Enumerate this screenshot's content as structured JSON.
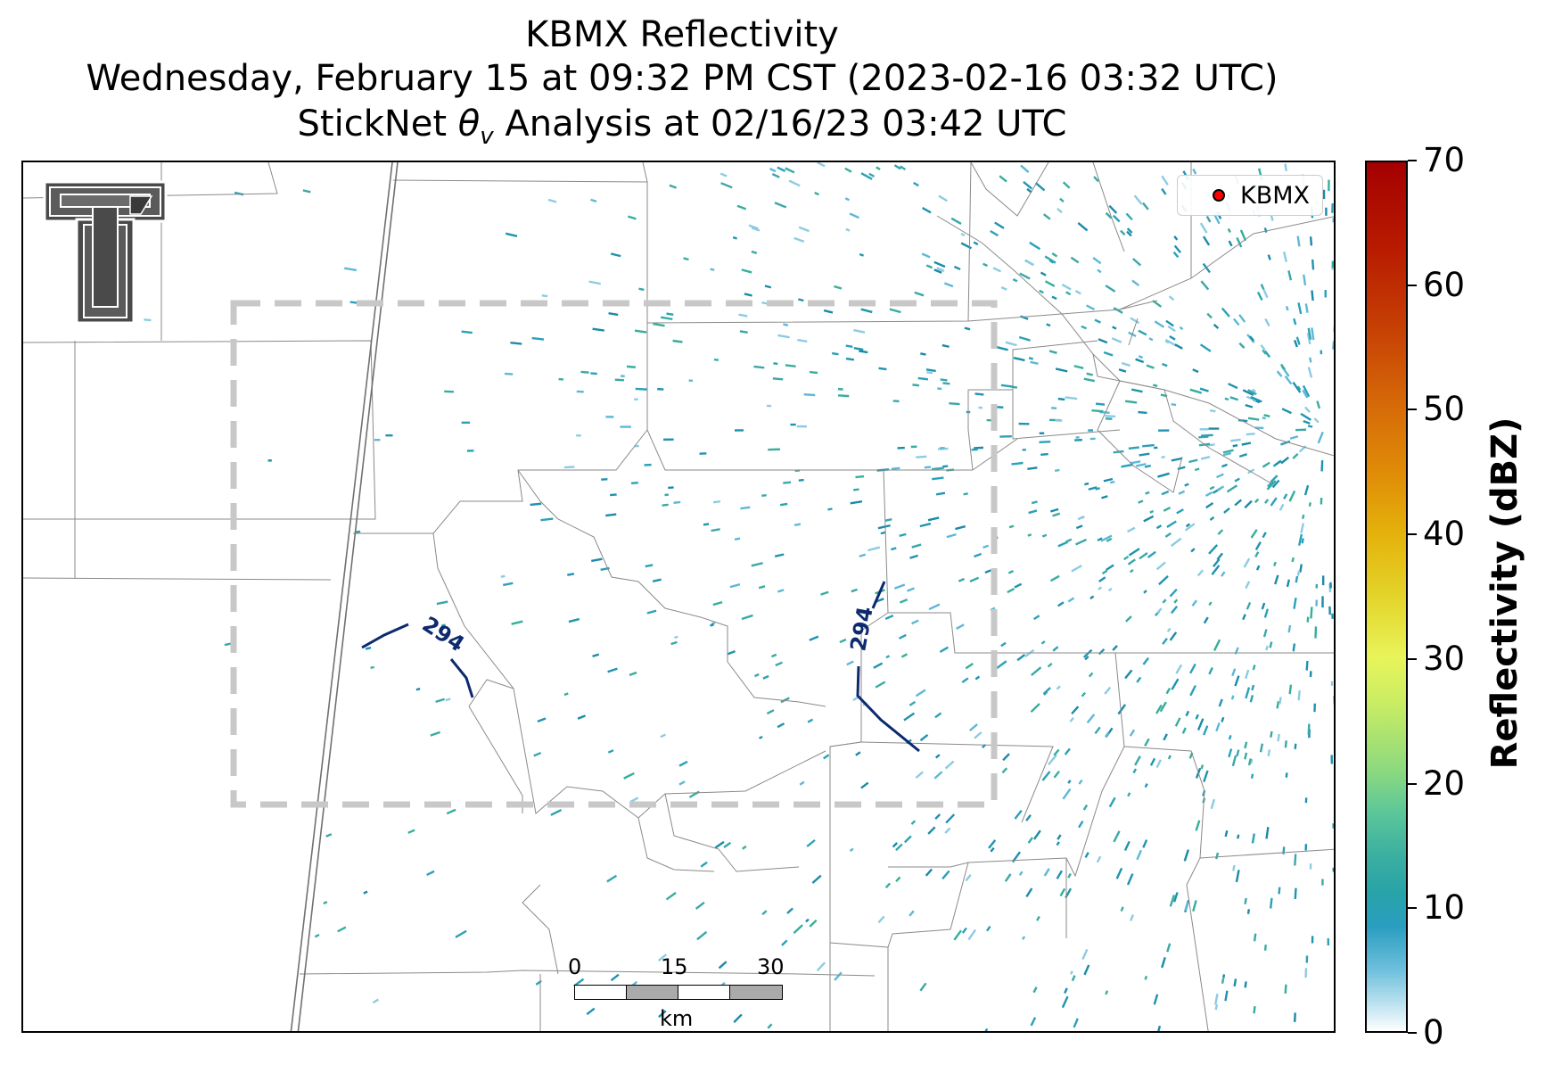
{
  "title": {
    "line1": "KBMX Reflectivity",
    "line2": "Wednesday, February 15 at 09:32 PM CST (2023-02-16 03:32 UTC)",
    "line3_prefix": "StickNet ",
    "line3_symbol": "θ",
    "line3_subscript": "v",
    "line3_suffix": " Analysis at 02/16/23 03:42 UTC"
  },
  "legend": {
    "entries": [
      {
        "label": "KBMX",
        "marker": "red-circle"
      }
    ]
  },
  "contours": [
    {
      "label": "294"
    },
    {
      "label": "294"
    }
  ],
  "scale_bar": {
    "ticks": [
      "0",
      "15",
      "30"
    ],
    "unit": "km"
  },
  "colorbar": {
    "label": "Reflectivity (dBZ)",
    "ticks": [
      "0",
      "10",
      "20",
      "30",
      "40",
      "50",
      "60",
      "70"
    ],
    "min": 0,
    "max": 70
  },
  "logo": {
    "name": "texas-tech-double-t-logo"
  },
  "colors": {
    "contour": "#0d2a6e",
    "analysis_box": "#c8c8c8",
    "borders": "#888888",
    "radar_marker": "#ff0000"
  }
}
